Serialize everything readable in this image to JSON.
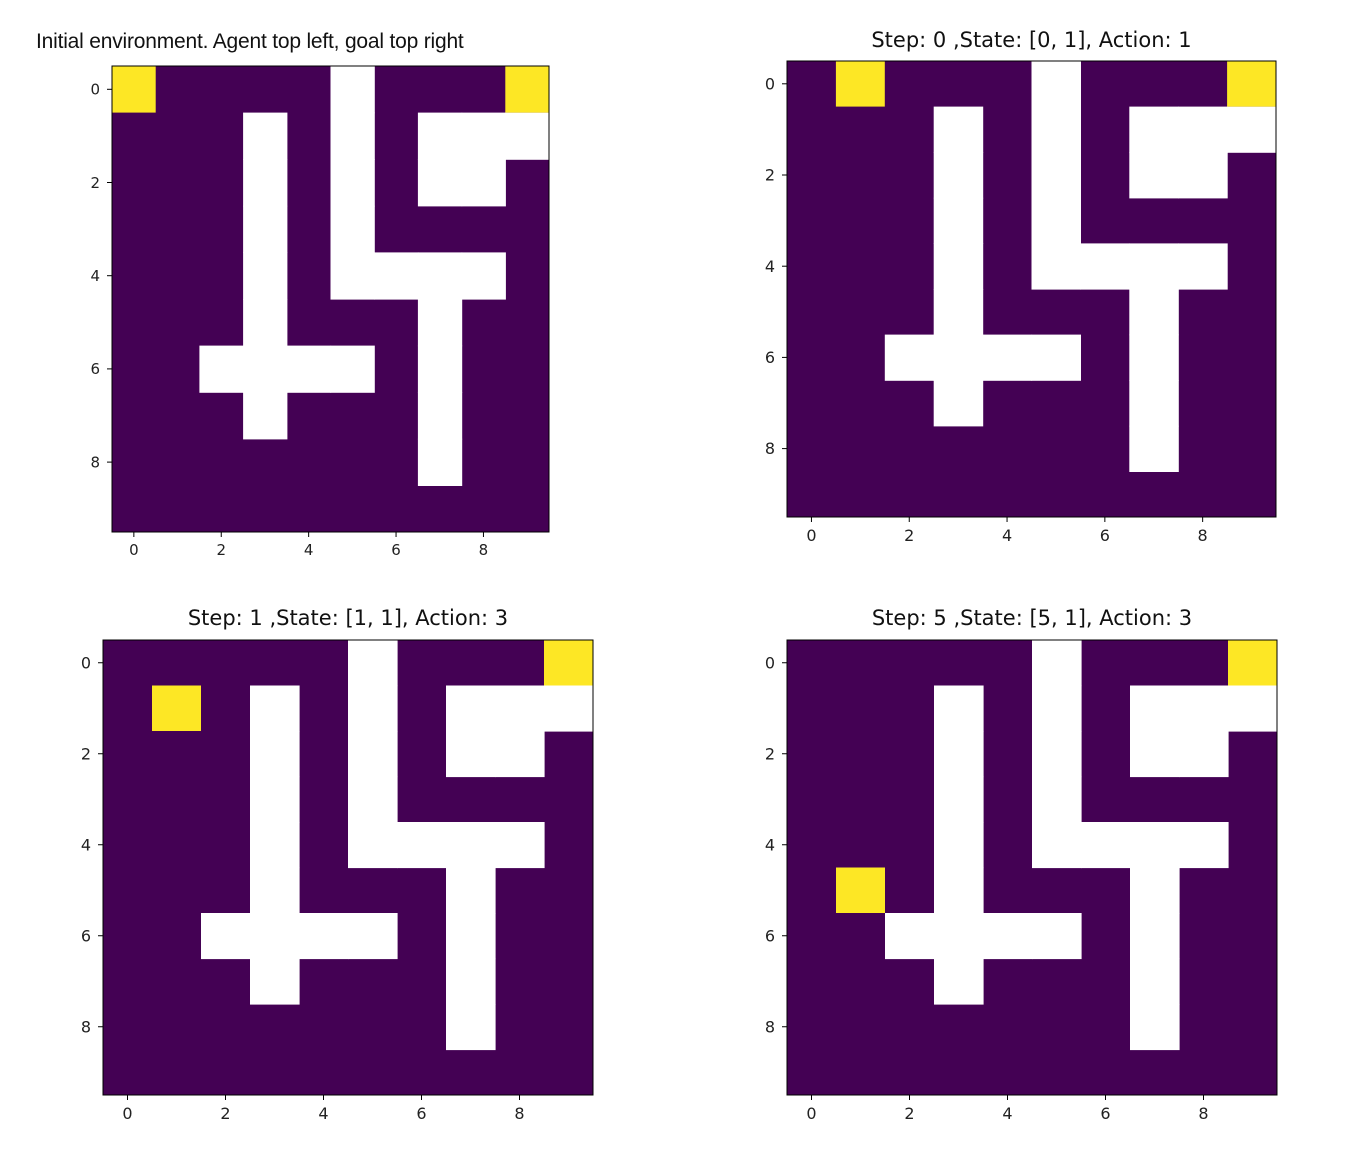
{
  "colors": {
    "wall": "#ffffff",
    "floor": "#440154",
    "agent": "#fde725",
    "goal": "#fde725",
    "axis": "#000000"
  },
  "chart_data": [
    {
      "type": "heatmap",
      "title": "Initial environment. Agent top left, goal top right",
      "xlabel": "",
      "ylabel": "",
      "xticks": [
        "0",
        "2",
        "4",
        "6",
        "8"
      ],
      "yticks": [
        "0",
        "2",
        "4",
        "6",
        "8"
      ],
      "xlim": [
        -0.5,
        9.5
      ],
      "ylim": [
        9.5,
        -0.5
      ],
      "grid": false,
      "agent": [
        0,
        0
      ],
      "goal": [
        0,
        9
      ],
      "walls": [
        [
          0,
          5
        ],
        [
          1,
          3
        ],
        [
          1,
          5
        ],
        [
          1,
          7
        ],
        [
          1,
          8
        ],
        [
          1,
          9
        ],
        [
          2,
          3
        ],
        [
          2,
          5
        ],
        [
          2,
          7
        ],
        [
          2,
          8
        ],
        [
          3,
          3
        ],
        [
          3,
          5
        ],
        [
          4,
          3
        ],
        [
          4,
          5
        ],
        [
          4,
          6
        ],
        [
          4,
          7
        ],
        [
          4,
          8
        ],
        [
          5,
          3
        ],
        [
          5,
          7
        ],
        [
          6,
          2
        ],
        [
          6,
          3
        ],
        [
          6,
          4
        ],
        [
          6,
          5
        ],
        [
          6,
          7
        ],
        [
          7,
          3
        ],
        [
          7,
          7
        ],
        [
          8,
          7
        ]
      ]
    },
    {
      "type": "heatmap",
      "title": "Step: 0 ,State: [0, 1], Action: 1",
      "xlabel": "",
      "ylabel": "",
      "xticks": [
        "0",
        "2",
        "4",
        "6",
        "8"
      ],
      "yticks": [
        "0",
        "2",
        "4",
        "6",
        "8"
      ],
      "xlim": [
        -0.5,
        9.5
      ],
      "ylim": [
        9.5,
        -0.5
      ],
      "grid": false,
      "agent": [
        0,
        1
      ],
      "goal": [
        0,
        9
      ],
      "walls": [
        [
          0,
          5
        ],
        [
          1,
          3
        ],
        [
          1,
          5
        ],
        [
          1,
          7
        ],
        [
          1,
          8
        ],
        [
          1,
          9
        ],
        [
          2,
          3
        ],
        [
          2,
          5
        ],
        [
          2,
          7
        ],
        [
          2,
          8
        ],
        [
          3,
          3
        ],
        [
          3,
          5
        ],
        [
          4,
          3
        ],
        [
          4,
          5
        ],
        [
          4,
          6
        ],
        [
          4,
          7
        ],
        [
          4,
          8
        ],
        [
          5,
          3
        ],
        [
          5,
          7
        ],
        [
          6,
          2
        ],
        [
          6,
          3
        ],
        [
          6,
          4
        ],
        [
          6,
          5
        ],
        [
          6,
          7
        ],
        [
          7,
          3
        ],
        [
          7,
          7
        ],
        [
          8,
          7
        ]
      ]
    },
    {
      "type": "heatmap",
      "title": "Step: 1 ,State: [1, 1], Action: 3",
      "xlabel": "",
      "ylabel": "",
      "xticks": [
        "0",
        "2",
        "4",
        "6",
        "8"
      ],
      "yticks": [
        "0",
        "2",
        "4",
        "6",
        "8"
      ],
      "xlim": [
        -0.5,
        9.5
      ],
      "ylim": [
        9.5,
        -0.5
      ],
      "grid": false,
      "agent": [
        1,
        1
      ],
      "goal": [
        0,
        9
      ],
      "walls": [
        [
          0,
          5
        ],
        [
          1,
          3
        ],
        [
          1,
          5
        ],
        [
          1,
          7
        ],
        [
          1,
          8
        ],
        [
          1,
          9
        ],
        [
          2,
          3
        ],
        [
          2,
          5
        ],
        [
          2,
          7
        ],
        [
          2,
          8
        ],
        [
          3,
          3
        ],
        [
          3,
          5
        ],
        [
          4,
          3
        ],
        [
          4,
          5
        ],
        [
          4,
          6
        ],
        [
          4,
          7
        ],
        [
          4,
          8
        ],
        [
          5,
          3
        ],
        [
          5,
          7
        ],
        [
          6,
          2
        ],
        [
          6,
          3
        ],
        [
          6,
          4
        ],
        [
          6,
          5
        ],
        [
          6,
          7
        ],
        [
          7,
          3
        ],
        [
          7,
          7
        ],
        [
          8,
          7
        ]
      ]
    },
    {
      "type": "heatmap",
      "title": "Step: 5 ,State: [5, 1], Action: 3",
      "xlabel": "",
      "ylabel": "",
      "xticks": [
        "0",
        "2",
        "4",
        "6",
        "8"
      ],
      "yticks": [
        "0",
        "2",
        "4",
        "6",
        "8"
      ],
      "xlim": [
        -0.5,
        9.5
      ],
      "ylim": [
        9.5,
        -0.5
      ],
      "grid": false,
      "agent": [
        5,
        1
      ],
      "goal": [
        0,
        9
      ],
      "walls": [
        [
          0,
          5
        ],
        [
          1,
          3
        ],
        [
          1,
          5
        ],
        [
          1,
          7
        ],
        [
          1,
          8
        ],
        [
          1,
          9
        ],
        [
          2,
          3
        ],
        [
          2,
          5
        ],
        [
          2,
          7
        ],
        [
          2,
          8
        ],
        [
          3,
          3
        ],
        [
          3,
          5
        ],
        [
          4,
          3
        ],
        [
          4,
          5
        ],
        [
          4,
          6
        ],
        [
          4,
          7
        ],
        [
          4,
          8
        ],
        [
          5,
          3
        ],
        [
          5,
          7
        ],
        [
          6,
          2
        ],
        [
          6,
          3
        ],
        [
          6,
          4
        ],
        [
          6,
          5
        ],
        [
          6,
          7
        ],
        [
          7,
          3
        ],
        [
          7,
          7
        ],
        [
          8,
          7
        ]
      ]
    }
  ]
}
